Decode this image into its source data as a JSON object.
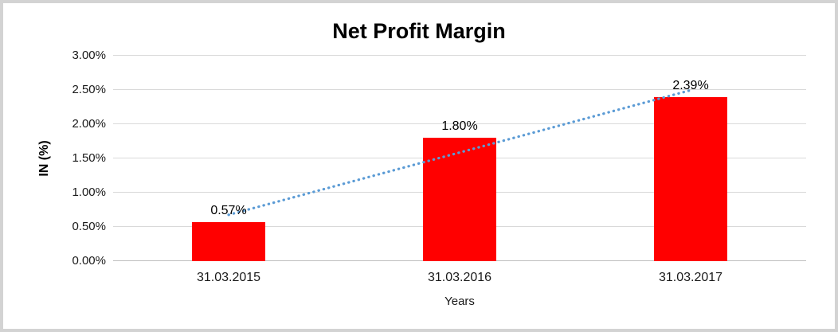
{
  "frame": {
    "background": "#ffffff",
    "border_color": "#d3d3d3"
  },
  "chart_data": {
    "type": "bar",
    "title": "Net Profit Margin",
    "xlabel": "Years",
    "ylabel": "IN (%)",
    "categories": [
      "31.03.2015",
      "31.03.2016",
      "31.03.2017"
    ],
    "values": [
      0.57,
      1.8,
      2.39
    ],
    "data_labels": [
      "0.57%",
      "1.80%",
      "2.39%"
    ],
    "ylim": [
      0,
      3
    ],
    "ytick_step": 0.5,
    "ytick_labels": [
      "0.00%",
      "0.50%",
      "1.00%",
      "1.50%",
      "2.00%",
      "2.50%",
      "3.00%"
    ],
    "grid": true,
    "legend": "none",
    "bar_color": "#ff0000",
    "gridline_color": "#d9d9d9",
    "axis_line_color": "#bfbfbf",
    "trendline": {
      "type": "linear",
      "style": "dotted",
      "color": "#5b9bd5"
    }
  }
}
